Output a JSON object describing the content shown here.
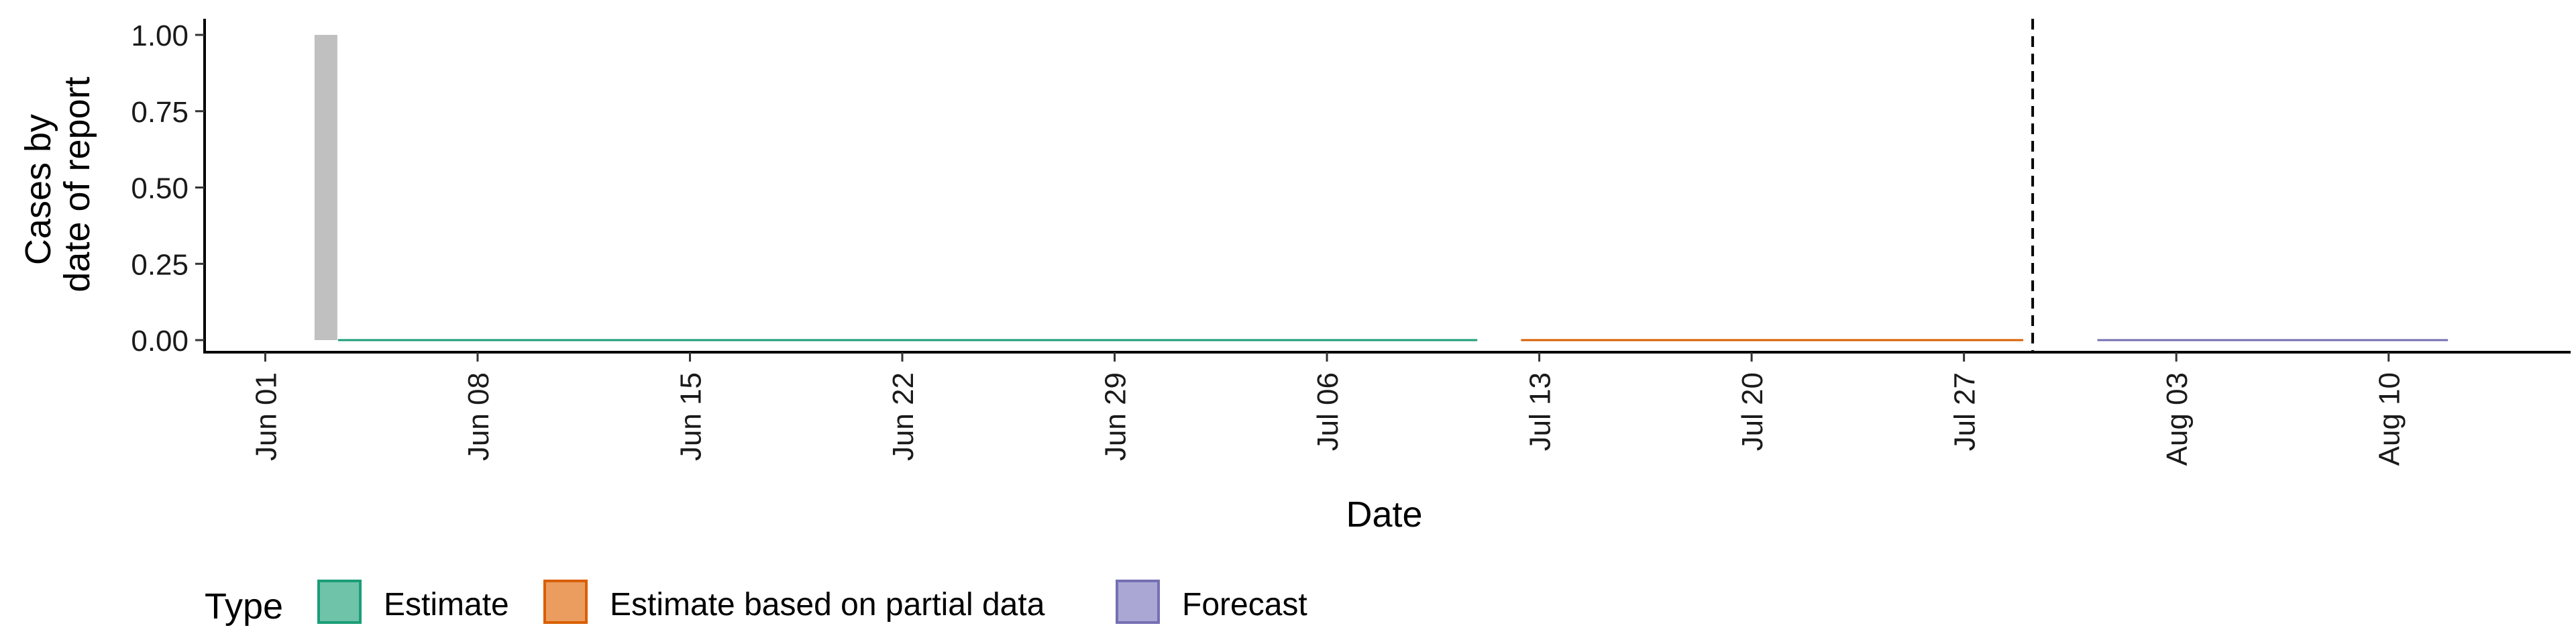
{
  "chart_data": {
    "type": "bar",
    "title": "",
    "xlabel": "Date",
    "ylabel": [
      "Cases by",
      "date of report"
    ],
    "ylim": [
      0,
      1
    ],
    "y_ticks": [
      {
        "value": 0,
        "label": "0.00"
      },
      {
        "value": 0.25,
        "label": "0.25"
      },
      {
        "value": 0.5,
        "label": "0.50"
      },
      {
        "value": 0.75,
        "label": "0.75"
      },
      {
        "value": 1,
        "label": "1.00"
      }
    ],
    "x_range": [
      "2021-05-30",
      "2021-08-16"
    ],
    "x_ticks": [
      {
        "date": "2021-06-01",
        "label": "Jun 01"
      },
      {
        "date": "2021-06-08",
        "label": "Jun 08"
      },
      {
        "date": "2021-06-15",
        "label": "Jun 15"
      },
      {
        "date": "2021-06-22",
        "label": "Jun 22"
      },
      {
        "date": "2021-06-29",
        "label": "Jun 29"
      },
      {
        "date": "2021-07-06",
        "label": "Jul 06"
      },
      {
        "date": "2021-07-13",
        "label": "Jul 13"
      },
      {
        "date": "2021-07-20",
        "label": "Jul 20"
      },
      {
        "date": "2021-07-27",
        "label": "Jul 27"
      },
      {
        "date": "2021-08-03",
        "label": "Aug 03"
      },
      {
        "date": "2021-08-10",
        "label": "Aug 10"
      }
    ],
    "bars": [
      {
        "date": "2021-06-03",
        "value": 1,
        "color": "#c0c0c0"
      }
    ],
    "series": [
      {
        "name": "Estimate",
        "color": "#1b9e77",
        "start": "2021-06-03",
        "end": "2021-07-11",
        "value": 0
      },
      {
        "name": "Estimate based on partial data",
        "color": "#d95f02",
        "start": "2021-07-12",
        "end": "2021-07-29",
        "value": 0
      },
      {
        "name": "Forecast",
        "color": "#7570b3",
        "start": "2021-07-31",
        "end": "2021-08-12",
        "value": 0
      }
    ],
    "vline": {
      "date": "2021-07-29",
      "style": "dashed"
    },
    "legend": {
      "title": "Type",
      "position": "bottom",
      "items": [
        {
          "label": "Estimate",
          "fill": "#6fc3a8",
          "stroke": "#1b9e77"
        },
        {
          "label": "Estimate based on partial data",
          "fill": "#eb9d60",
          "stroke": "#d95f02"
        },
        {
          "label": "Forecast",
          "fill": "#aaa7d4",
          "stroke": "#7570b3"
        }
      ]
    },
    "grid": false
  }
}
